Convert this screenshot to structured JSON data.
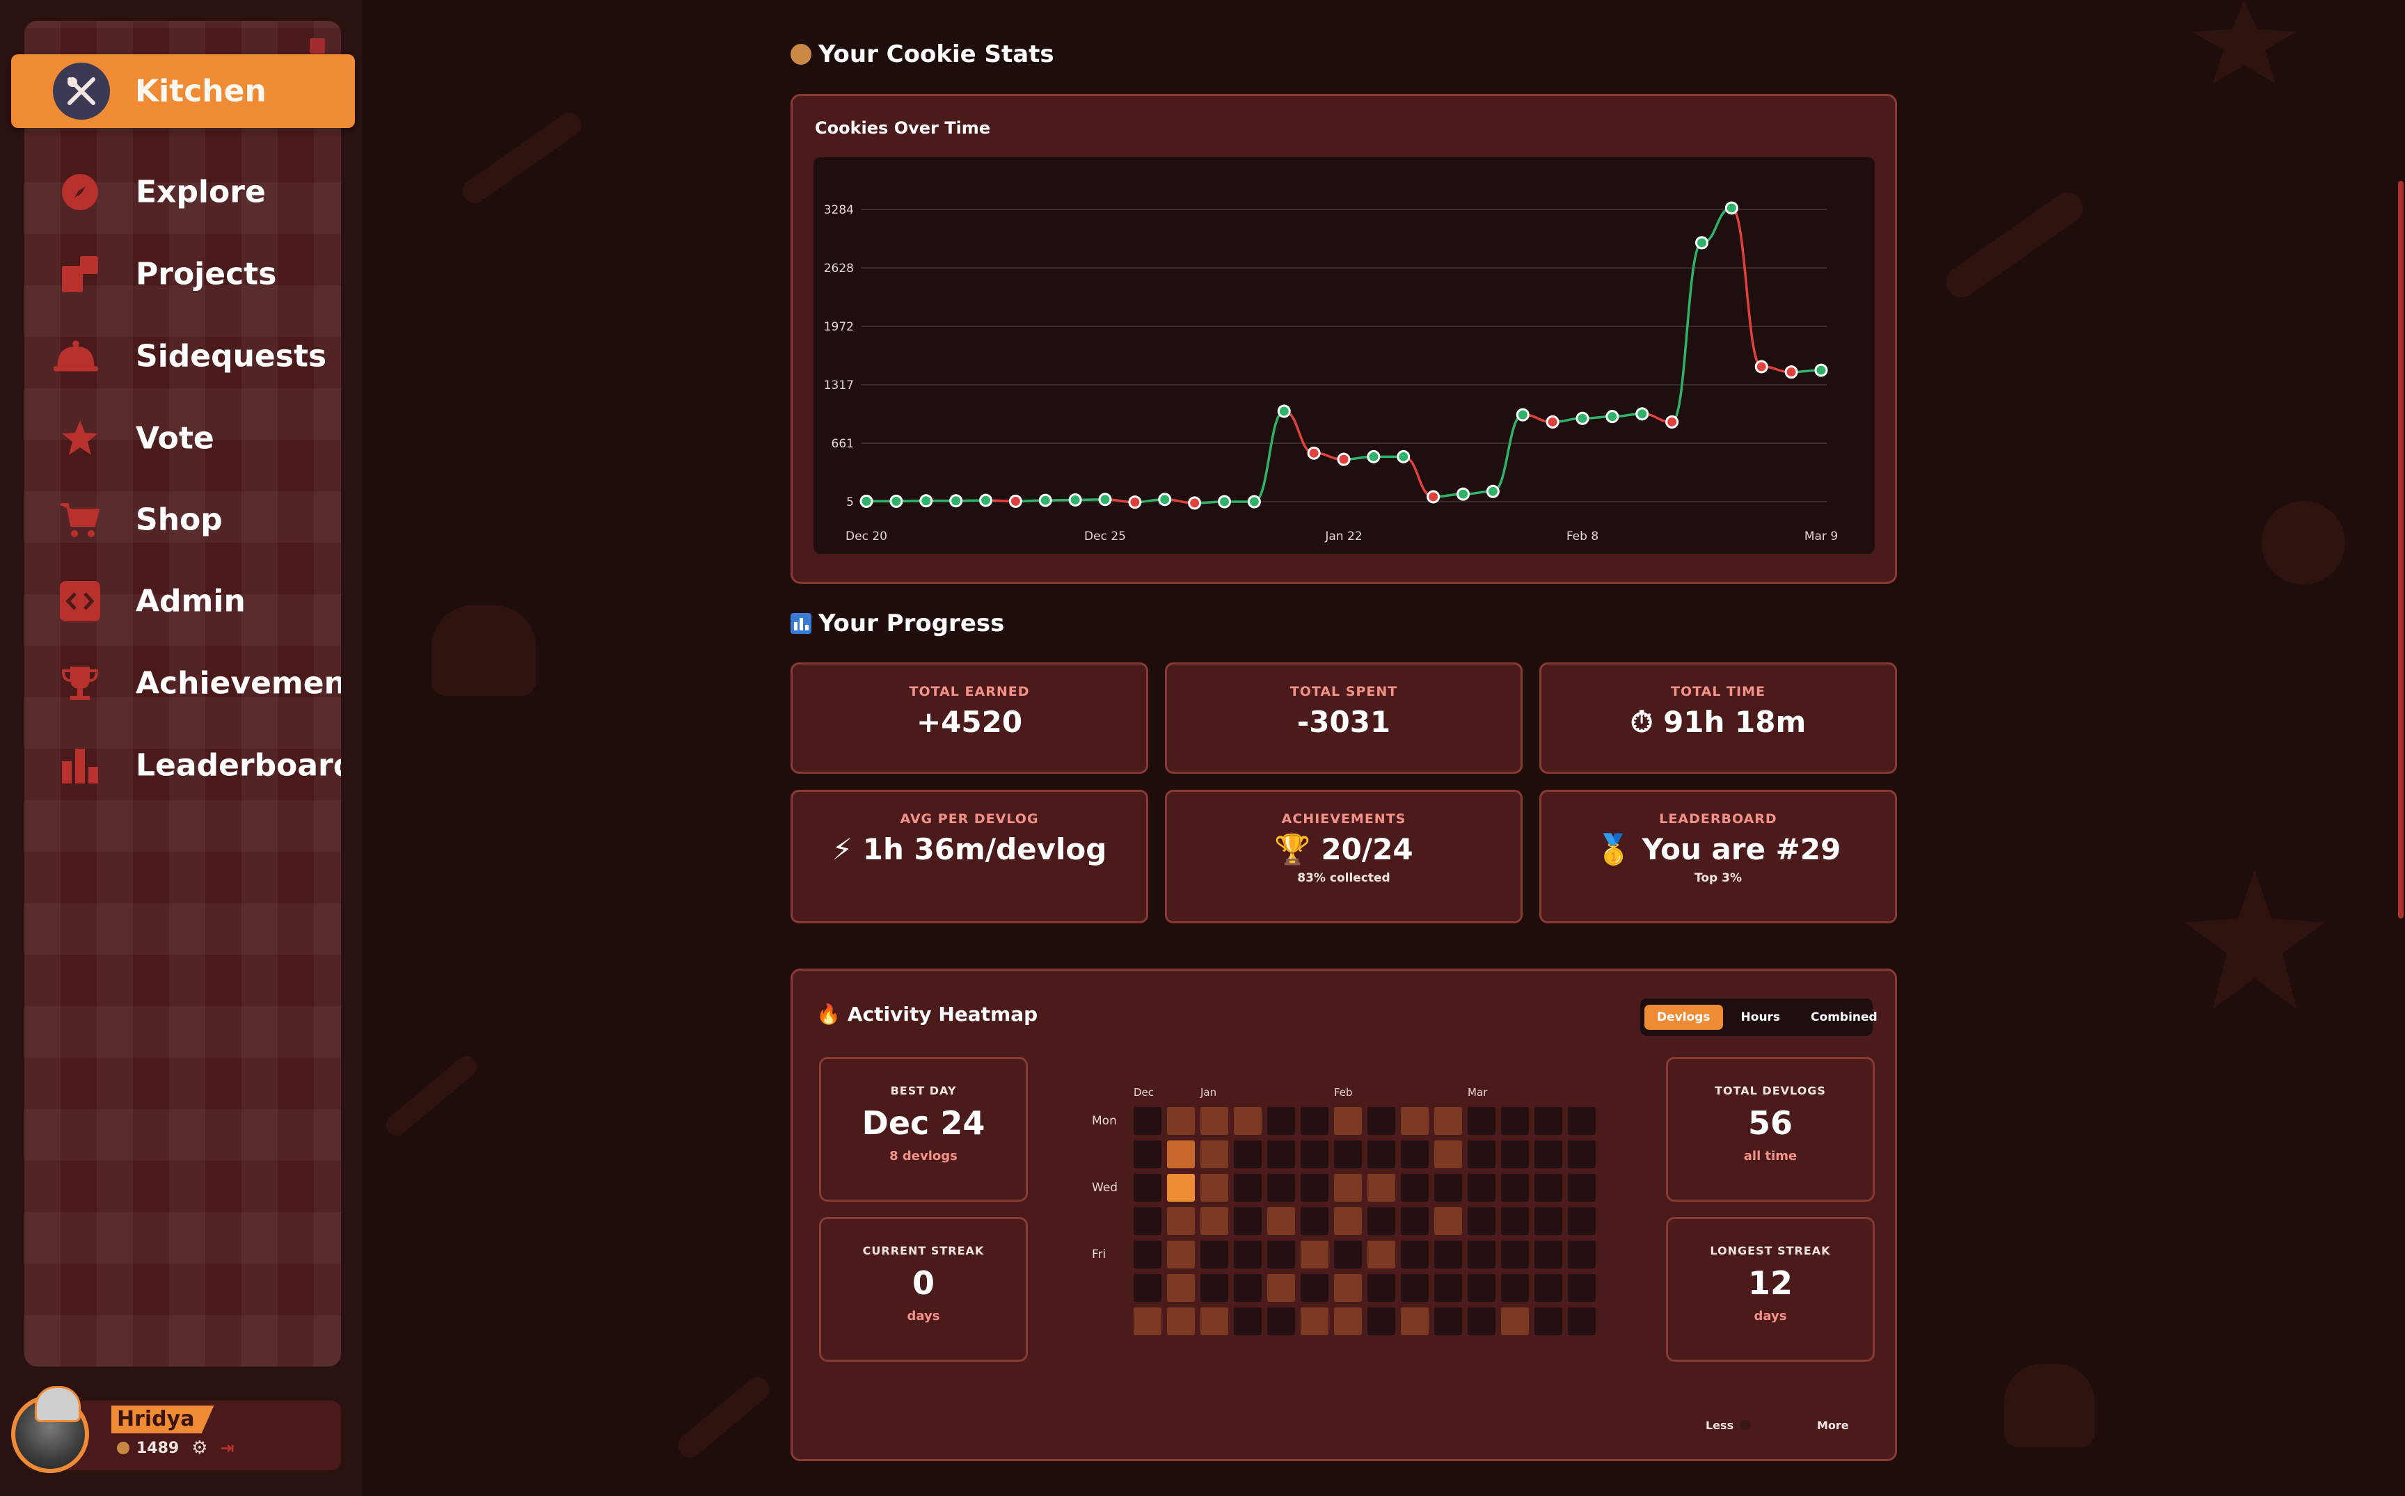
{
  "sidebar": {
    "items": [
      {
        "label": "Kitchen",
        "icon": "utensils-icon",
        "active": true
      },
      {
        "label": "Explore",
        "icon": "compass-icon"
      },
      {
        "label": "Projects",
        "icon": "projects-icon"
      },
      {
        "label": "Sidequests",
        "icon": "cloche-icon"
      },
      {
        "label": "Vote",
        "icon": "star-icon"
      },
      {
        "label": "Shop",
        "icon": "cart-icon"
      },
      {
        "label": "Admin",
        "icon": "code-icon"
      },
      {
        "label": "Achievements",
        "icon": "trophy-icon"
      },
      {
        "label": "Leaderboard",
        "icon": "bar-chart-icon"
      }
    ]
  },
  "user": {
    "name": "Hridya",
    "cookies": "1489"
  },
  "cookie_stats": {
    "title": "Your Cookie Stats",
    "chart_title": "Cookies Over Time"
  },
  "chart_data": {
    "type": "line",
    "title": "Cookies Over Time",
    "xlabel": "",
    "ylabel": "",
    "ylim": [
      5,
      3284
    ],
    "yticks": [
      "3284",
      "2628",
      "1972",
      "1317",
      "661",
      "5"
    ],
    "ytick_values": [
      3284,
      2628,
      1972,
      1317,
      661,
      5
    ],
    "xticks": [
      "Dec 20",
      "Dec 25",
      "Jan 22",
      "Feb 8",
      "Mar 9"
    ],
    "xtick_index": [
      0,
      8,
      16,
      24,
      32
    ],
    "values": [
      10,
      10,
      15,
      15,
      20,
      10,
      20,
      25,
      30,
      0,
      30,
      -10,
      5,
      5,
      1020,
      550,
      480,
      510,
      510,
      60,
      90,
      120,
      980,
      900,
      940,
      960,
      990,
      900,
      2910,
      3300,
      1520,
      1460,
      1480
    ],
    "colors": {
      "up": "#2fb36a",
      "down": "#e0413c"
    }
  },
  "progress": {
    "title": "Your Progress",
    "cards": [
      {
        "label": "TOTAL EARNED",
        "value": "+4520",
        "sub": ""
      },
      {
        "label": "TOTAL SPENT",
        "value": "-3031",
        "sub": ""
      },
      {
        "label": "TOTAL TIME",
        "value": "⏱ 91h 18m",
        "sub": ""
      },
      {
        "label": "AVG PER DEVLOG",
        "value": "⚡ 1h 36m/devlog",
        "sub": ""
      },
      {
        "label": "ACHIEVEMENTS",
        "value": "🏆 20/24",
        "sub": "83% collected"
      },
      {
        "label": "LEADERBOARD",
        "value": "🥇 You are #29",
        "sub": "Top 3%"
      }
    ]
  },
  "heatmap": {
    "title": "Activity Heatmap",
    "toggle": [
      "Devlogs",
      "Hours",
      "Combined"
    ],
    "toggle_active": "Devlogs",
    "best_day": {
      "label": "BEST DAY",
      "value": "Dec 24",
      "sub": "8 devlogs"
    },
    "current_streak": {
      "label": "CURRENT STREAK",
      "value": "0",
      "sub": "days"
    },
    "total_devlogs": {
      "label": "TOTAL DEVLOGS",
      "value": "56",
      "sub": "all time"
    },
    "longest_streak": {
      "label": "LONGEST STREAK",
      "value": "12",
      "sub": "days"
    },
    "months": [
      "Dec",
      "Jan",
      "Feb",
      "Mar"
    ],
    "month_cols": [
      0,
      2,
      6,
      10
    ],
    "days": [
      "Mon",
      "Wed",
      "Fri"
    ],
    "day_rows": [
      0,
      2,
      4
    ],
    "grid": [
      [
        0,
        2,
        2,
        2,
        0,
        0,
        2,
        0,
        2,
        2,
        0,
        0,
        0,
        0
      ],
      [
        0,
        3,
        2,
        0,
        0,
        0,
        0,
        0,
        0,
        2,
        0,
        0,
        0,
        0
      ],
      [
        0,
        4,
        2,
        0,
        0,
        0,
        2,
        2,
        0,
        0,
        0,
        0,
        0,
        0
      ],
      [
        0,
        2,
        2,
        0,
        2,
        0,
        2,
        0,
        0,
        2,
        0,
        0,
        0,
        0
      ],
      [
        0,
        2,
        0,
        0,
        0,
        2,
        0,
        2,
        0,
        0,
        0,
        0,
        0,
        0
      ],
      [
        0,
        2,
        0,
        0,
        2,
        0,
        2,
        0,
        0,
        0,
        0,
        0,
        0,
        0
      ],
      [
        2,
        2,
        2,
        0,
        0,
        2,
        2,
        0,
        2,
        0,
        0,
        2,
        0,
        0
      ]
    ],
    "levels": [
      "#241010",
      "#3a1a16",
      "#7d3a22",
      "#c8672c",
      "#f08b35"
    ],
    "legend_less": "Less",
    "legend_more": "More"
  }
}
